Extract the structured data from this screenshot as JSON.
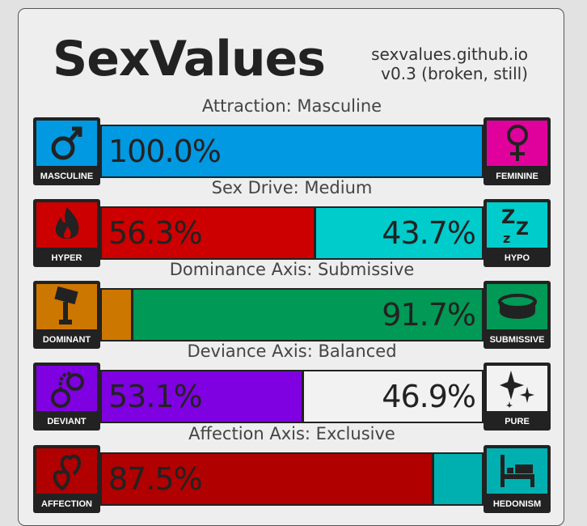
{
  "header": {
    "title": "SexValues",
    "site": "sexvalues.github.io",
    "version": "v0.3 (broken, still)"
  },
  "axes": [
    {
      "label": "Attraction: Masculine",
      "left": {
        "name": "MASCULINE",
        "icon": "male-symbol-icon",
        "color": "#0099e2",
        "value": 100.0,
        "text": "100.0%"
      },
      "right": {
        "name": "FEMININE",
        "icon": "female-symbol-icon",
        "color": "#e0009c",
        "value": 0.0,
        "text": ""
      }
    },
    {
      "label": "Sex Drive: Medium",
      "left": {
        "name": "HYPER",
        "icon": "fire-icon",
        "color": "#cc0000",
        "value": 56.3,
        "text": "56.3%"
      },
      "right": {
        "name": "HYPO",
        "icon": "sleep-zzz-icon",
        "color": "#00cccc",
        "value": 43.7,
        "text": "43.7%"
      }
    },
    {
      "label": "Dominance Axis: Submissive",
      "left": {
        "name": "DOMINANT",
        "icon": "gavel-icon",
        "color": "#cc7700",
        "value": 8.3,
        "text": ""
      },
      "right": {
        "name": "SUBMISSIVE",
        "icon": "collar-icon",
        "color": "#009955",
        "value": 91.7,
        "text": "91.7%"
      }
    },
    {
      "label": "Deviance Axis: Balanced",
      "left": {
        "name": "DEVIANT",
        "icon": "handcuffs-icon",
        "color": "#7f00e0",
        "value": 53.1,
        "text": "53.1%"
      },
      "right": {
        "name": "PURE",
        "icon": "sparkles-icon",
        "color": "#f2f2f2",
        "value": 46.9,
        "text": "46.9%"
      }
    },
    {
      "label": "Affection Axis: Exclusive",
      "left": {
        "name": "AFFECTION",
        "icon": "hearts-icon",
        "color": "#b00000",
        "value": 87.5,
        "text": "87.5%"
      },
      "right": {
        "name": "HEDONISM",
        "icon": "bed-icon",
        "color": "#00b0b0",
        "value": 12.5,
        "text": ""
      }
    }
  ]
}
